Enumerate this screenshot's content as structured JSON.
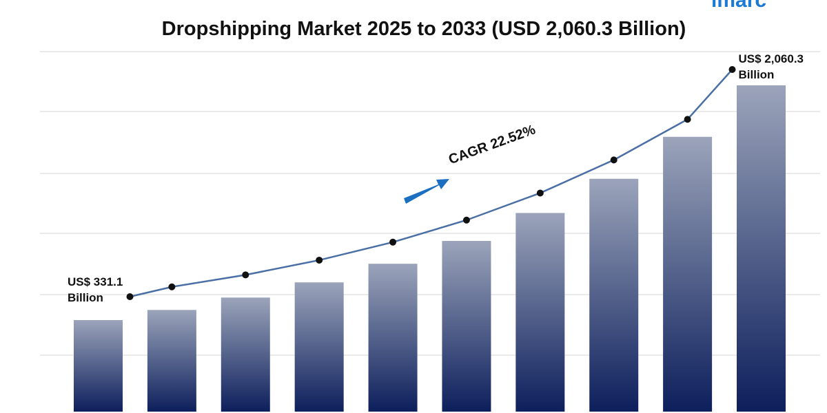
{
  "logo": "imarc",
  "chart_data": {
    "type": "bar",
    "title": "Dropshipping Market 2025 to 2033 (USD 2,060.3 Billion)",
    "values": [
      331.1,
      405.7,
      497.0,
      609.0,
      746.1,
      914.1,
      1120.0,
      1372.0,
      1681.0,
      2060.3
    ],
    "value_labels": [
      "US$ 331.1 Billion",
      null,
      null,
      null,
      null,
      null,
      null,
      null,
      null,
      "US$ 2,060.3 Billion"
    ],
    "annotation": "CAGR 22.52%",
    "color": "#0d1f5c",
    "line_color": "#4a6fa5",
    "grid": true
  }
}
